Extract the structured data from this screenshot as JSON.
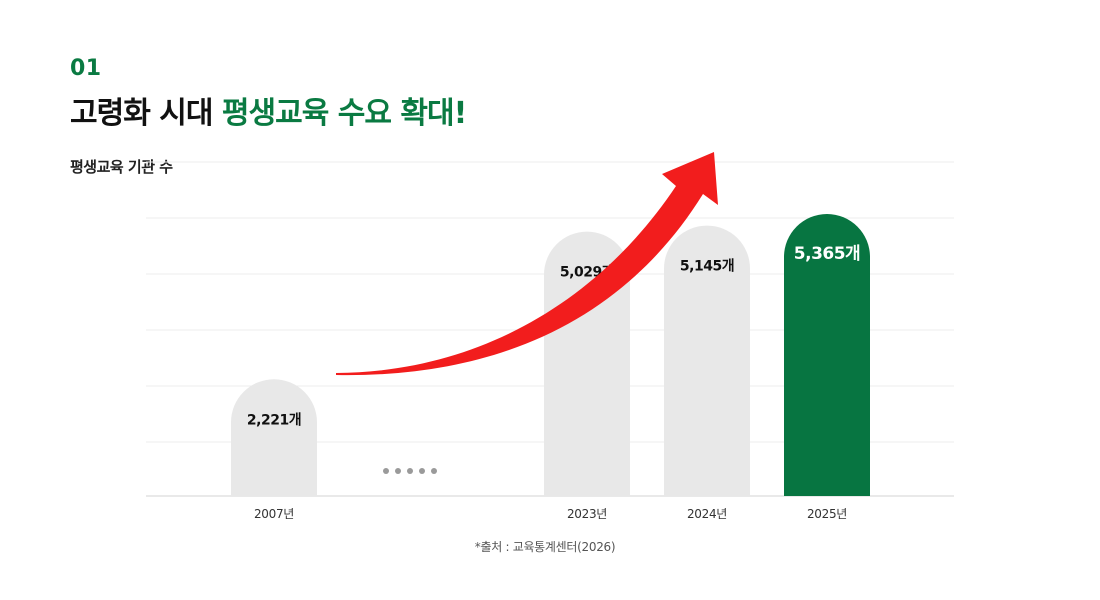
{
  "header": {
    "section_number": "01",
    "title_prefix": "고령화 시대 ",
    "title_highlight": "평생교육 수요 확대!",
    "chart_subtitle": "평생교육 기관 수"
  },
  "source_note": "*출처 : 교육통계센터(2026)",
  "colors": {
    "accent_green": "#0a7a42",
    "bar_gray": "#e8e8e8",
    "bar_highlight": "#077541",
    "arrow_red": "#f21d1d",
    "grid": "#ececec",
    "ellipsis_dots": "#9a9a9a"
  },
  "chart_data": {
    "type": "bar",
    "title": "평생교육 기관 수",
    "categories": [
      "2007년",
      "2023년",
      "2024년",
      "2025년"
    ],
    "values": [
      2221,
      5029,
      5145,
      5365
    ],
    "value_labels": [
      "2,221개",
      "5,029개",
      "5,145개",
      "5,365개"
    ],
    "highlight_category": "2025년",
    "gap_after_category": "2007년",
    "grid": true,
    "trend_arrow": true
  }
}
